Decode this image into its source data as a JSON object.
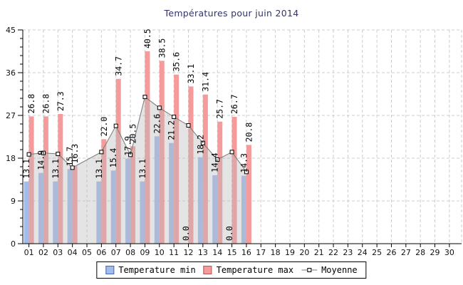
{
  "title": "Températures pour juin 2014",
  "legend": {
    "min_label": "Temperature min",
    "max_label": "Temperature max",
    "moyenne_label": "Moyenne"
  },
  "colors": {
    "bar_min_fill": "#a2bcec",
    "bar_min_border": "#4466bb",
    "bar_max_fill": "#f69b9b",
    "bar_max_border": "#bb5555",
    "moyenne_line": "#777777",
    "moyenne_marker_fill": "#ffffff",
    "moyenne_marker_border": "#000000",
    "moyenne_area": "rgba(185,185,185,0.38)",
    "grid": "#cccccc",
    "axis": "#000000",
    "title": "#333366"
  },
  "chart_data": {
    "type": "bar",
    "title": "Températures pour juin 2014",
    "categories": [
      "01",
      "02",
      "03",
      "04",
      "05",
      "06",
      "07",
      "08",
      "09",
      "10",
      "11",
      "12",
      "13",
      "14",
      "15",
      "16",
      "17",
      "18",
      "19",
      "20",
      "21",
      "22",
      "23",
      "24",
      "25",
      "26",
      "27",
      "28",
      "29",
      "30"
    ],
    "series": [
      {
        "name": "Temperature min",
        "type": "bar",
        "values": [
          13.1,
          14.9,
          13.1,
          15.7,
          null,
          13.1,
          15.4,
          17.9,
          13.1,
          22.6,
          21.2,
          0.0,
          18.2,
          14.4,
          0.0,
          14.3,
          null,
          null,
          null,
          null,
          null,
          null,
          null,
          null,
          null,
          null,
          null,
          null,
          null,
          null
        ]
      },
      {
        "name": "Temperature max",
        "type": "bar",
        "values": [
          26.8,
          26.8,
          27.3,
          16.3,
          null,
          22.0,
          34.7,
          20.5,
          40.5,
          38.5,
          35.6,
          33.1,
          31.4,
          25.7,
          26.7,
          20.8,
          null,
          null,
          null,
          null,
          null,
          null,
          null,
          null,
          null,
          null,
          null,
          null,
          null,
          null
        ]
      },
      {
        "name": "Moyenne",
        "type": "line",
        "values": [
          18.8,
          19.1,
          18.9,
          16.0,
          null,
          19.3,
          24.8,
          18.7,
          30.9,
          28.6,
          26.7,
          24.9,
          21.2,
          17.7,
          19.3,
          15.1,
          null,
          null,
          null,
          null,
          null,
          null,
          null,
          null,
          null,
          null,
          null,
          null,
          null,
          null
        ]
      }
    ],
    "ylim": [
      0,
      45
    ],
    "yticks": [
      0,
      9,
      18,
      27,
      36,
      45
    ],
    "y_minor_step": 1.8,
    "grid": true,
    "legend_position": "bottom"
  }
}
